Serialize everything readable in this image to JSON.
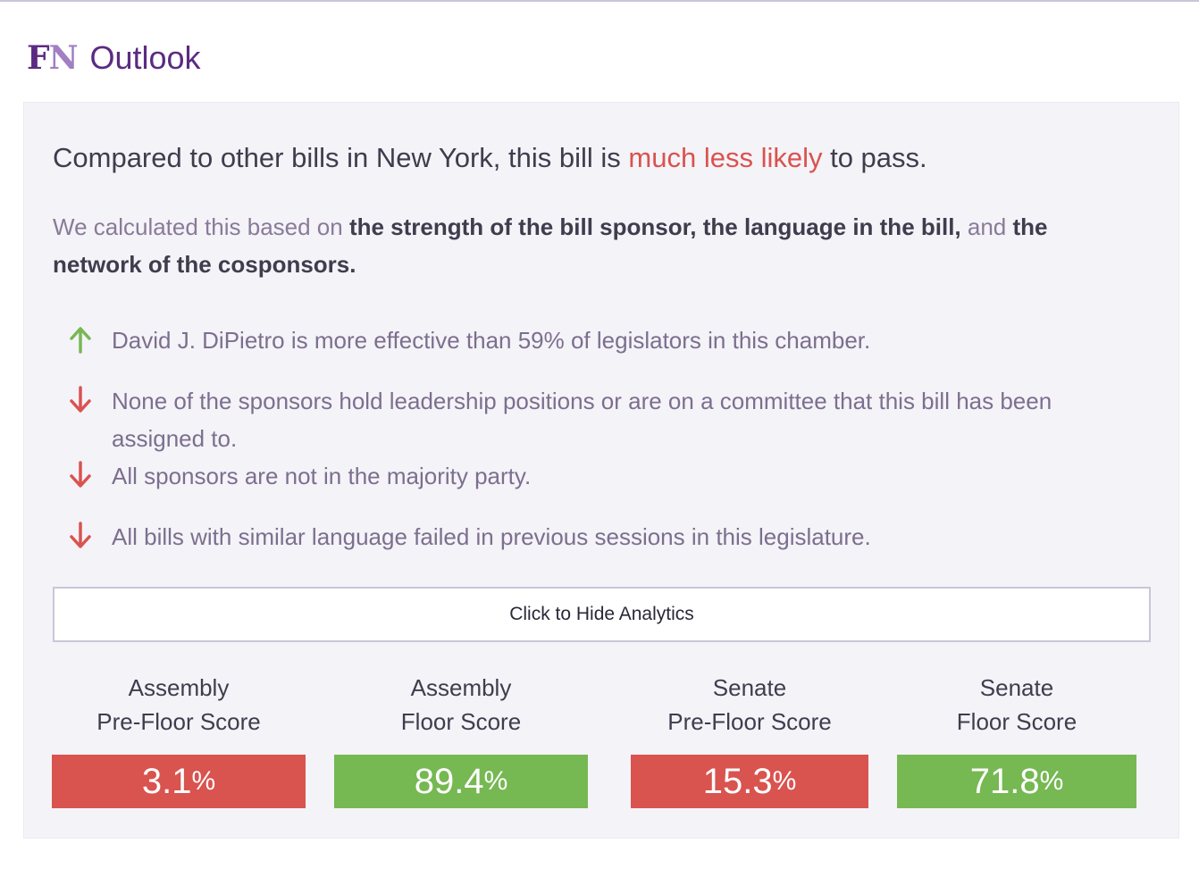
{
  "header": {
    "logo_f": "F",
    "logo_n": "N",
    "title": "Outlook"
  },
  "summary": {
    "headline_prefix": "Compared to other bills in New York, this bill is ",
    "headline_highlight": "much less likely",
    "headline_suffix": " to pass.",
    "sub_1": "We calculated this based on ",
    "sub_2": "the strength of the bill sponsor, the language in the bill,",
    "sub_3": " and ",
    "sub_4": "the network of the cosponsors."
  },
  "factors": [
    {
      "direction": "up",
      "icon": "arrow-up-icon",
      "text": "David J. DiPietro is more effective than 59% of legislators in this chamber."
    },
    {
      "direction": "down",
      "icon": "arrow-down-icon",
      "text": "None of the sponsors hold leadership positions or are on a committee that this bill has been assigned to."
    },
    {
      "direction": "down",
      "icon": "arrow-down-icon",
      "text": "All sponsors are not in the majority party."
    },
    {
      "direction": "down",
      "icon": "arrow-down-icon",
      "text": "All bills with similar language failed in previous sessions in this legislature."
    }
  ],
  "toggle": {
    "label": "Click to Hide Analytics"
  },
  "scores": [
    {
      "line1": "Assembly",
      "line2": "Pre-Floor Score",
      "value": "3.1",
      "unit": "%",
      "status": "red"
    },
    {
      "line1": "Assembly",
      "line2": "Floor Score",
      "value": "89.4",
      "unit": "%",
      "status": "green"
    },
    {
      "line1": "Senate",
      "line2": "Pre-Floor Score",
      "value": "15.3",
      "unit": "%",
      "status": "red"
    },
    {
      "line1": "Senate",
      "line2": "Floor Score",
      "value": "71.8",
      "unit": "%",
      "status": "green"
    }
  ],
  "colors": {
    "brand": "#5b2b83",
    "negative": "#d9534f",
    "positive": "#76b852",
    "panel": "#f4f3f8"
  }
}
